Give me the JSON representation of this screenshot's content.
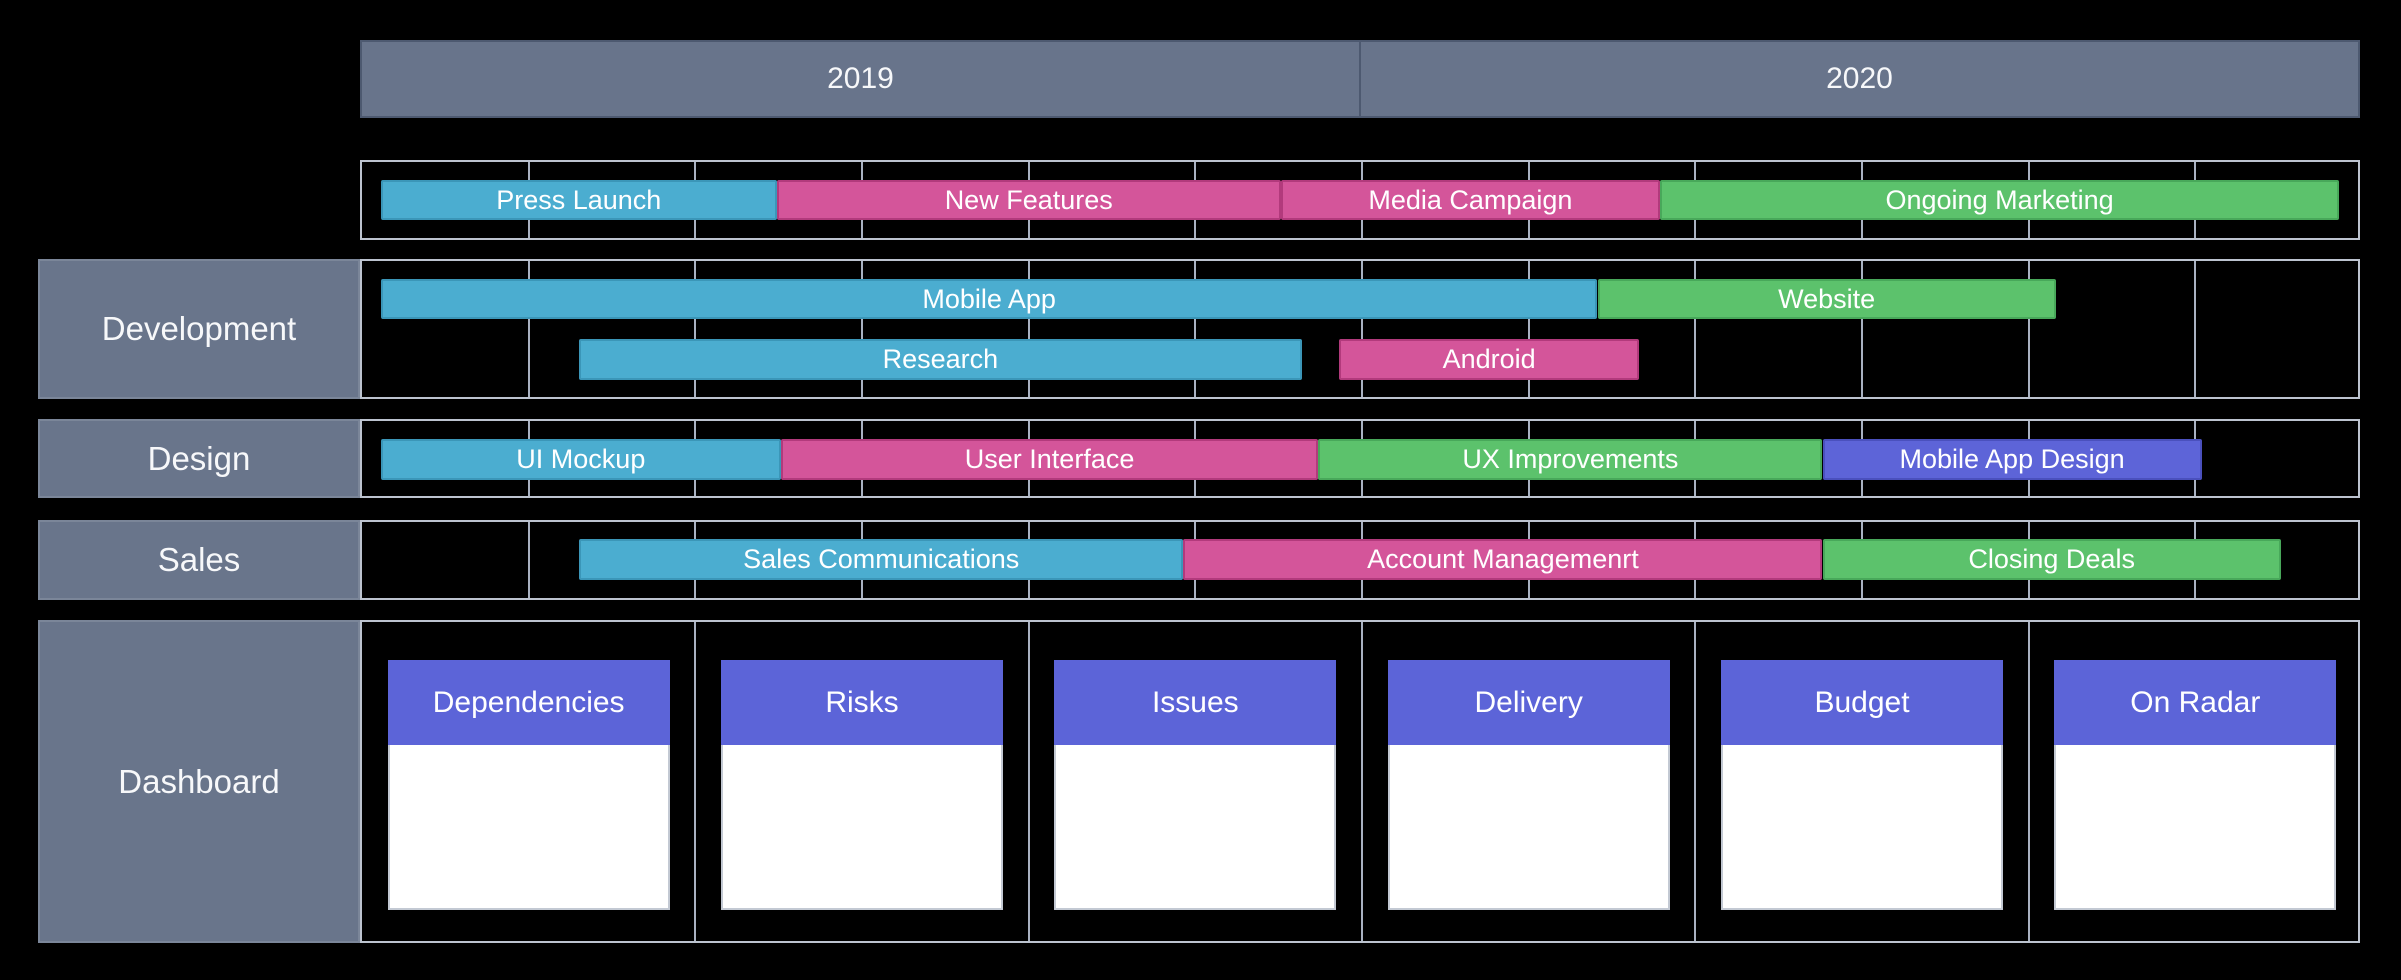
{
  "page": {
    "background": "#000000"
  },
  "colors": {
    "background": "#000000",
    "slate_header": "#68748b",
    "slate_label": "#69758b",
    "grid_line": "#a9b2c2",
    "box_border": "#bcc3cf",
    "teal": "#4badd0",
    "pink": "#d4559a",
    "green": "#5cc26c",
    "purple": "#5d64d8",
    "card_header": "#5c64d8",
    "card_body": "#ffffff",
    "text": "#ffffff"
  },
  "chart_data": {
    "type": "gantt",
    "title": "",
    "x_axis": {
      "years": [
        "2019",
        "2020"
      ],
      "unit": "month",
      "range": [
        0,
        24
      ],
      "columns": 12,
      "grid": true
    },
    "legend": "none",
    "groups": [
      {
        "label": "",
        "bars": [
          {
            "name": "Press Launch",
            "color": "teal",
            "start": 0.25,
            "end": 5.0,
            "line": 0
          },
          {
            "name": "New Features",
            "color": "pink",
            "start": 5.0,
            "end": 11.05,
            "line": 0
          },
          {
            "name": "Media Campaign",
            "color": "pink",
            "start": 11.05,
            "end": 15.6,
            "line": 0
          },
          {
            "name": "Ongoing Marketing",
            "color": "green",
            "start": 15.6,
            "end": 23.75,
            "line": 0
          }
        ]
      },
      {
        "label": "Development",
        "bars": [
          {
            "name": "Mobile App",
            "color": "teal",
            "start": 0.25,
            "end": 14.85,
            "line": 0
          },
          {
            "name": "Website",
            "color": "green",
            "start": 14.85,
            "end": 20.35,
            "line": 0
          },
          {
            "name": "Research",
            "color": "teal",
            "start": 2.63,
            "end": 11.3,
            "line": 1
          },
          {
            "name": "Android",
            "color": "pink",
            "start": 11.75,
            "end": 15.35,
            "line": 1
          }
        ]
      },
      {
        "label": "Design",
        "bars": [
          {
            "name": "UI Mockup",
            "color": "teal",
            "start": 0.25,
            "end": 5.05,
            "line": 0
          },
          {
            "name": "User Interface",
            "color": "pink",
            "start": 5.05,
            "end": 11.5,
            "line": 0
          },
          {
            "name": "UX Improvements",
            "color": "green",
            "start": 11.5,
            "end": 17.55,
            "line": 0
          },
          {
            "name": "Mobile App Design",
            "color": "purple",
            "start": 17.55,
            "end": 22.1,
            "line": 0
          }
        ]
      },
      {
        "label": "Sales",
        "bars": [
          {
            "name": "Sales Communications",
            "color": "teal",
            "start": 2.63,
            "end": 9.88,
            "line": 0
          },
          {
            "name": "Account Managemenrt",
            "color": "pink",
            "start": 9.88,
            "end": 17.55,
            "line": 0
          },
          {
            "name": "Closing Deals",
            "color": "green",
            "start": 17.55,
            "end": 23.05,
            "line": 0
          }
        ]
      }
    ]
  },
  "dashboard": {
    "label": "Dashboard",
    "cards": [
      {
        "title": "Dependencies"
      },
      {
        "title": "Risks"
      },
      {
        "title": "Issues"
      },
      {
        "title": "Delivery"
      },
      {
        "title": "Budget"
      },
      {
        "title": "On Radar"
      }
    ]
  }
}
